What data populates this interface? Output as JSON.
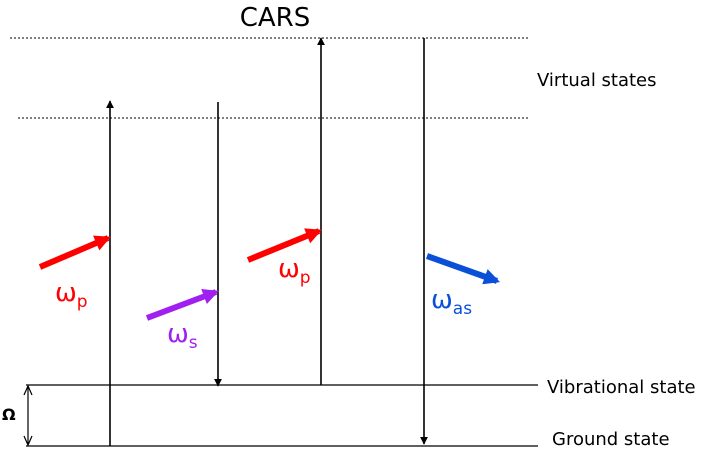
{
  "title": "CARS",
  "levels": {
    "virtual": "Virtual states",
    "vibrational": "Vibrational state",
    "ground": "Ground state"
  },
  "shift_label": "Ω",
  "beams": {
    "pump1": {
      "symbol": "ω",
      "sub": "p",
      "color": "#ff0000"
    },
    "stokes": {
      "symbol": "ω",
      "sub": "s",
      "color": "#a020f0"
    },
    "pump2": {
      "symbol": "ω",
      "sub": "p",
      "color": "#ff0000"
    },
    "antistokes": {
      "symbol": "ω",
      "sub": "as",
      "color": "#0a4fd8"
    }
  }
}
